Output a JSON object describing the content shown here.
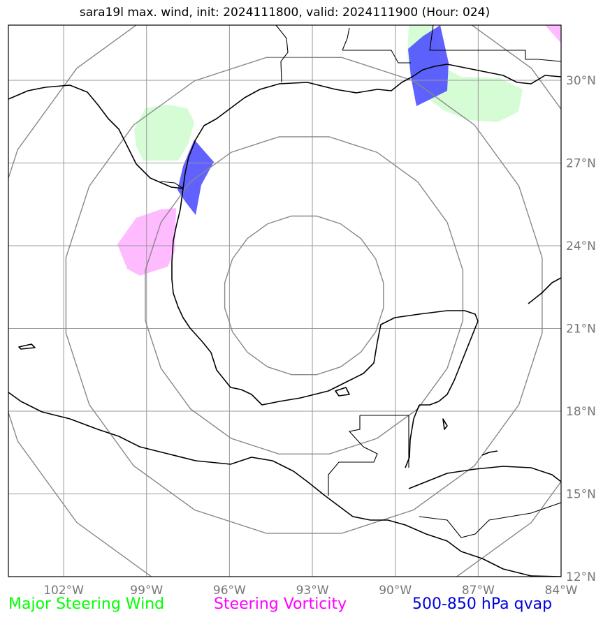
{
  "title": "sara19l max. wind, init: 2024111800, valid: 2024111900 (Hour: 024)",
  "map": {
    "lon_range": [
      -104,
      -84
    ],
    "lat_range": [
      12,
      32
    ],
    "lon_ticks": [
      {
        "value": -102,
        "label": "102°W"
      },
      {
        "value": -99,
        "label": "99°W"
      },
      {
        "value": -96,
        "label": "96°W"
      },
      {
        "value": -93,
        "label": "93°W"
      },
      {
        "value": -90,
        "label": "90°W"
      },
      {
        "value": -87,
        "label": "87°W"
      },
      {
        "value": -84,
        "label": "84°W"
      }
    ],
    "lat_ticks": [
      {
        "value": 12,
        "label": "12°N"
      },
      {
        "value": 15,
        "label": "15°N"
      },
      {
        "value": 18,
        "label": "18°N"
      },
      {
        "value": 21,
        "label": "21°N"
      },
      {
        "value": 24,
        "label": "24°N"
      },
      {
        "value": 27,
        "label": "27°N"
      },
      {
        "value": 30,
        "label": "30°N"
      }
    ],
    "grid": true,
    "range_rings": {
      "center": [
        -93.3,
        22.2
      ],
      "count": 4
    },
    "colors": {
      "grid": "#999999",
      "rings": "#888888",
      "coast": "#000000",
      "steering_wind": "#00ff00",
      "steering_vorticity": "#ff00ff",
      "qvap": "#0000ff"
    }
  },
  "legend": {
    "steering_wind": {
      "label": "Major Steering Wind",
      "color": "#00ff00"
    },
    "steering_vorticity": {
      "label": "Steering Vorticity",
      "color": "#ff00ff"
    },
    "qvap": {
      "label": "500-850 hPa qvap",
      "color": "#0000dd"
    }
  }
}
